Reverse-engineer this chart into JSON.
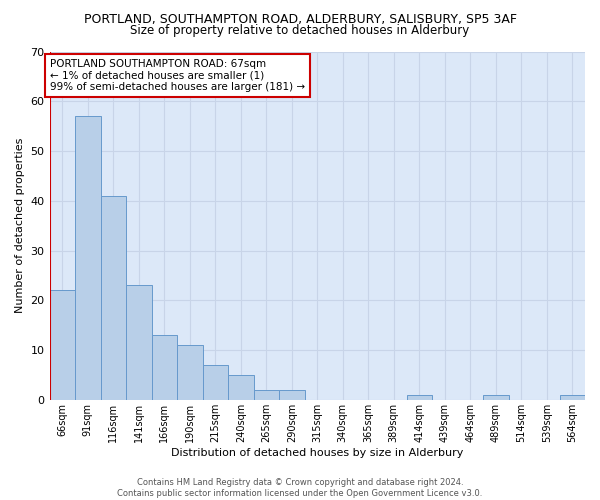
{
  "title": "PORTLAND, SOUTHAMPTON ROAD, ALDERBURY, SALISBURY, SP5 3AF",
  "subtitle": "Size of property relative to detached houses in Alderbury",
  "xlabel": "Distribution of detached houses by size in Alderbury",
  "ylabel": "Number of detached properties",
  "bar_labels": [
    "66sqm",
    "91sqm",
    "116sqm",
    "141sqm",
    "166sqm",
    "190sqm",
    "215sqm",
    "240sqm",
    "265sqm",
    "290sqm",
    "315sqm",
    "340sqm",
    "365sqm",
    "389sqm",
    "414sqm",
    "439sqm",
    "464sqm",
    "489sqm",
    "514sqm",
    "539sqm",
    "564sqm"
  ],
  "bar_values": [
    22,
    57,
    41,
    23,
    13,
    11,
    7,
    5,
    2,
    2,
    0,
    0,
    0,
    0,
    1,
    0,
    0,
    1,
    0,
    0,
    1
  ],
  "bar_color": "#b8cfe8",
  "bar_edge_color": "#6699cc",
  "highlight_index": 0,
  "highlight_line_color": "#cc0000",
  "ylim": [
    0,
    70
  ],
  "yticks": [
    0,
    10,
    20,
    30,
    40,
    50,
    60,
    70
  ],
  "grid_color": "#c8d4e8",
  "bg_color": "#dce8f8",
  "annotation_text": "PORTLAND SOUTHAMPTON ROAD: 67sqm\n← 1% of detached houses are smaller (1)\n99% of semi-detached houses are larger (181) →",
  "footer_line1": "Contains HM Land Registry data © Crown copyright and database right 2024.",
  "footer_line2": "Contains public sector information licensed under the Open Government Licence v3.0."
}
